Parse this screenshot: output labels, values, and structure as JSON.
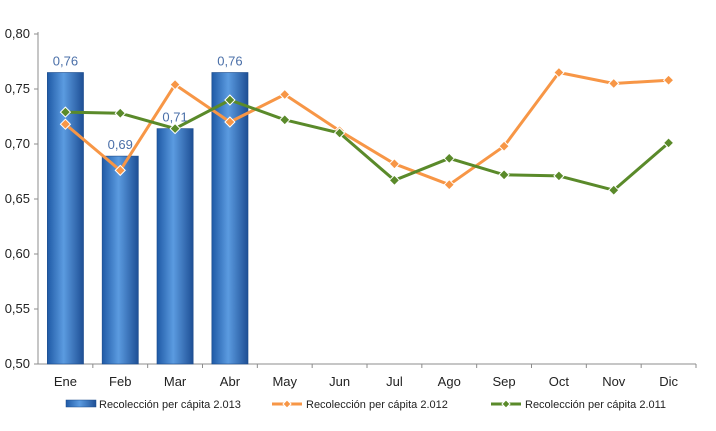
{
  "chart_data": {
    "type": "bar",
    "categories": [
      "Ene",
      "Feb",
      "Mar",
      "Abr",
      "May",
      "Jun",
      "Jul",
      "Ago",
      "Sep",
      "Oct",
      "Nov",
      "Dic"
    ],
    "ylim": [
      0.5,
      0.8
    ],
    "yticks": [
      "0,50",
      "0,55",
      "0,60",
      "0,65",
      "0,70",
      "0,75",
      "0,80"
    ],
    "ytick_values": [
      0.5,
      0.55,
      0.6,
      0.65,
      0.7,
      0.75,
      0.8
    ],
    "grid": false,
    "legend_position": "bottom",
    "series": [
      {
        "name": "Recolección per cápita 2.013",
        "type": "bar",
        "color": "#2e6db4",
        "values": [
          0.765,
          0.689,
          0.714,
          0.765,
          null,
          null,
          null,
          null,
          null,
          null,
          null,
          null
        ],
        "labels": [
          "0,76",
          "0,69",
          "0,71",
          "0,76"
        ]
      },
      {
        "name": "Recolección per cápita 2.012",
        "type": "line",
        "color": "#f79646",
        "values": [
          0.718,
          0.676,
          0.754,
          0.72,
          0.745,
          0.712,
          0.682,
          0.663,
          0.698,
          0.765,
          0.755,
          0.758
        ]
      },
      {
        "name": "Recolección per cápita 2.011",
        "type": "line",
        "color": "#5a8a2a",
        "values": [
          0.729,
          0.728,
          0.714,
          0.74,
          0.722,
          0.71,
          0.667,
          0.687,
          0.672,
          0.671,
          0.658,
          0.701
        ]
      }
    ]
  }
}
